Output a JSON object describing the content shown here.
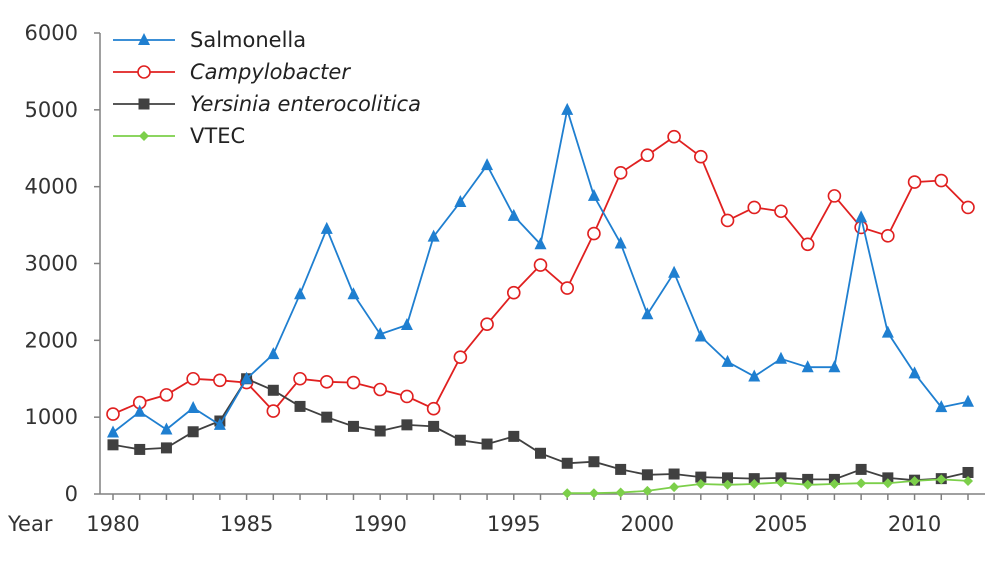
{
  "chart_data": {
    "type": "line",
    "title": "",
    "xlabel": "Year",
    "ylabel": "",
    "xlim": [
      1980,
      2012
    ],
    "ylim": [
      0,
      6000
    ],
    "x_ticks": [
      "1980",
      "1985",
      "1990",
      "1995",
      "2000",
      "2005",
      "2010"
    ],
    "y_ticks": [
      "0",
      "1000",
      "2000",
      "3000",
      "4000",
      "5000",
      "6000"
    ],
    "grid": false,
    "legend_position": "top-left",
    "series": [
      {
        "name": "Salmonella",
        "italic": false,
        "color": "#1f7fd0",
        "marker": "triangle",
        "x": [
          1980,
          1981,
          1982,
          1983,
          1984,
          1985,
          1986,
          1987,
          1988,
          1989,
          1990,
          1991,
          1992,
          1993,
          1994,
          1995,
          1996,
          1997,
          1998,
          1999,
          2000,
          2001,
          2002,
          2003,
          2004,
          2005,
          2006,
          2007,
          2008,
          2009,
          2010,
          2011,
          2012
        ],
        "values": [
          800,
          1070,
          840,
          1120,
          900,
          1500,
          1820,
          2600,
          3450,
          2600,
          2080,
          2200,
          3350,
          3800,
          4280,
          3620,
          3250,
          5000,
          3880,
          3260,
          2340,
          2880,
          2050,
          1720,
          1530,
          1760,
          1650,
          1650,
          3600,
          2100,
          1570,
          1130,
          1200
        ]
      },
      {
        "name": "Campylobacter",
        "italic": true,
        "color": "#e02020",
        "marker": "circle",
        "x": [
          1980,
          1981,
          1982,
          1983,
          1984,
          1985,
          1986,
          1987,
          1988,
          1989,
          1990,
          1991,
          1992,
          1993,
          1994,
          1995,
          1996,
          1997,
          1998,
          1999,
          2000,
          2001,
          2002,
          2003,
          2004,
          2005,
          2006,
          2007,
          2008,
          2009,
          2010,
          2011,
          2012
        ],
        "values": [
          1040,
          1190,
          1290,
          1500,
          1480,
          1450,
          1080,
          1500,
          1460,
          1450,
          1360,
          1270,
          1110,
          1780,
          2210,
          2620,
          2980,
          2680,
          3390,
          4180,
          4410,
          4650,
          4390,
          3560,
          3730,
          3680,
          3250,
          3880,
          3470,
          3360,
          4060,
          4080,
          3730
        ]
      },
      {
        "name": "Yersinia enterocolitica",
        "italic": true,
        "color": "#404040",
        "marker": "square",
        "x": [
          1980,
          1981,
          1982,
          1983,
          1984,
          1985,
          1986,
          1987,
          1988,
          1989,
          1990,
          1991,
          1992,
          1993,
          1994,
          1995,
          1996,
          1997,
          1998,
          1999,
          2000,
          2001,
          2002,
          2003,
          2004,
          2005,
          2006,
          2007,
          2008,
          2009,
          2010,
          2011,
          2012
        ],
        "values": [
          640,
          580,
          600,
          810,
          950,
          1500,
          1350,
          1140,
          1000,
          880,
          820,
          900,
          880,
          700,
          650,
          750,
          530,
          400,
          420,
          320,
          250,
          260,
          220,
          210,
          200,
          210,
          190,
          190,
          320,
          210,
          180,
          200,
          280
        ]
      },
      {
        "name": "VTEC",
        "italic": false,
        "color": "#7ccf4a",
        "marker": "diamond",
        "x": [
          1997,
          1998,
          1999,
          2000,
          2001,
          2002,
          2003,
          2004,
          2005,
          2006,
          2007,
          2008,
          2009,
          2010,
          2011,
          2012
        ],
        "values": [
          10,
          10,
          20,
          40,
          90,
          130,
          120,
          130,
          150,
          120,
          130,
          140,
          140,
          170,
          190,
          170
        ]
      }
    ]
  }
}
